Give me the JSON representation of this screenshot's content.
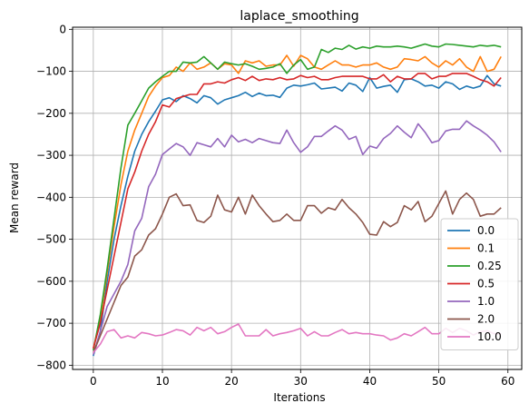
{
  "chart_data": {
    "type": "line",
    "title": "laplace_smoothing",
    "xlabel": "Iterations",
    "ylabel": "Mean reward",
    "xlim": [
      -3,
      62
    ],
    "ylim": [
      -810,
      5
    ],
    "xticks": [
      0,
      10,
      20,
      30,
      40,
      50,
      60
    ],
    "yticks": [
      0,
      -100,
      -200,
      -300,
      -400,
      -500,
      -600,
      -700,
      -800
    ],
    "grid": true,
    "legend_position": "lower-right",
    "x": [
      0,
      1,
      2,
      3,
      4,
      5,
      6,
      7,
      8,
      9,
      10,
      11,
      12,
      13,
      14,
      15,
      16,
      17,
      18,
      19,
      20,
      21,
      22,
      23,
      24,
      25,
      26,
      27,
      28,
      29,
      30,
      31,
      32,
      33,
      34,
      35,
      36,
      37,
      38,
      39,
      40,
      41,
      42,
      43,
      44,
      45,
      46,
      47,
      48,
      49,
      50,
      51,
      52,
      53,
      54,
      55,
      56,
      57,
      58,
      59
    ],
    "series": [
      {
        "name": "0.0",
        "color": "#1f77b4",
        "values": [
          -778,
          -720,
          -600,
          -500,
          -420,
          -350,
          -290,
          -250,
          -220,
          -195,
          -168,
          -163,
          -172,
          -158,
          -165,
          -175,
          -158,
          -163,
          -178,
          -168,
          -163,
          -158,
          -150,
          -160,
          -152,
          -158,
          -157,
          -162,
          -140,
          -133,
          -135,
          -132,
          -128,
          -142,
          -140,
          -138,
          -147,
          -128,
          -133,
          -148,
          -115,
          -140,
          -136,
          -133,
          -150,
          -120,
          -118,
          -125,
          -135,
          -133,
          -140,
          -125,
          -130,
          -143,
          -135,
          -140,
          -135,
          -110,
          -130,
          -135
        ]
      },
      {
        "name": "0.1",
        "color": "#ff7f0e",
        "values": [
          -760,
          -690,
          -580,
          -470,
          -370,
          -290,
          -240,
          -200,
          -160,
          -135,
          -115,
          -110,
          -90,
          -100,
          -80,
          -95,
          -90,
          -80,
          -95,
          -82,
          -85,
          -105,
          -75,
          -80,
          -75,
          -88,
          -85,
          -85,
          -62,
          -88,
          -62,
          -70,
          -90,
          -95,
          -85,
          -75,
          -85,
          -85,
          -90,
          -85,
          -85,
          -80,
          -90,
          -95,
          -90,
          -70,
          -72,
          -75,
          -65,
          -80,
          -90,
          -75,
          -85,
          -70,
          -90,
          -100,
          -65,
          -100,
          -95,
          -65
        ]
      },
      {
        "name": "0.25",
        "color": "#2ca02c",
        "values": [
          -765,
          -680,
          -570,
          -450,
          -330,
          -228,
          -200,
          -170,
          -140,
          -125,
          -112,
          -100,
          -100,
          -78,
          -80,
          -78,
          -65,
          -80,
          -95,
          -78,
          -82,
          -85,
          -82,
          -88,
          -95,
          -93,
          -90,
          -82,
          -105,
          -85,
          -72,
          -95,
          -90,
          -48,
          -55,
          -45,
          -48,
          -38,
          -47,
          -42,
          -45,
          -40,
          -42,
          -42,
          -40,
          -42,
          -45,
          -40,
          -35,
          -40,
          -42,
          -35,
          -36,
          -38,
          -40,
          -42,
          -38,
          -40,
          -38,
          -42
        ]
      },
      {
        "name": "0.5",
        "color": "#d62728",
        "values": [
          -760,
          -700,
          -620,
          -540,
          -460,
          -380,
          -340,
          -290,
          -250,
          -220,
          -180,
          -185,
          -165,
          -160,
          -155,
          -155,
          -130,
          -130,
          -125,
          -128,
          -120,
          -115,
          -122,
          -112,
          -122,
          -118,
          -120,
          -115,
          -120,
          -118,
          -110,
          -115,
          -112,
          -120,
          -120,
          -115,
          -112,
          -112,
          -112,
          -112,
          -118,
          -118,
          -108,
          -125,
          -112,
          -118,
          -118,
          -105,
          -105,
          -118,
          -112,
          -112,
          -105,
          -105,
          -105,
          -112,
          -120,
          -125,
          -135,
          -115
        ]
      },
      {
        "name": "1.0",
        "color": "#9467bd",
        "values": [
          -775,
          -720,
          -660,
          -630,
          -600,
          -560,
          -480,
          -450,
          -375,
          -345,
          -298,
          -285,
          -272,
          -280,
          -300,
          -270,
          -275,
          -280,
          -260,
          -280,
          -252,
          -268,
          -262,
          -270,
          -260,
          -265,
          -270,
          -272,
          -240,
          -270,
          -293,
          -280,
          -255,
          -255,
          -242,
          -230,
          -240,
          -262,
          -255,
          -298,
          -278,
          -283,
          -260,
          -248,
          -230,
          -245,
          -258,
          -225,
          -245,
          -270,
          -265,
          -242,
          -238,
          -238,
          -218,
          -230,
          -240,
          -252,
          -268,
          -292
        ]
      },
      {
        "name": "2.0",
        "color": "#8c564b",
        "values": [
          -770,
          -730,
          -690,
          -650,
          -610,
          -590,
          -540,
          -525,
          -490,
          -475,
          -440,
          -400,
          -392,
          -420,
          -418,
          -455,
          -460,
          -445,
          -395,
          -430,
          -435,
          -400,
          -440,
          -395,
          -420,
          -440,
          -458,
          -455,
          -440,
          -455,
          -455,
          -420,
          -420,
          -438,
          -425,
          -430,
          -405,
          -425,
          -440,
          -460,
          -488,
          -490,
          -458,
          -470,
          -460,
          -420,
          -430,
          -410,
          -458,
          -445,
          -415,
          -385,
          -440,
          -405,
          -390,
          -405,
          -445,
          -440,
          -440,
          -425
        ]
      },
      {
        "name": "10.0",
        "color": "#e377c2",
        "values": [
          -770,
          -750,
          -720,
          -715,
          -735,
          -730,
          -735,
          -722,
          -725,
          -730,
          -728,
          -722,
          -715,
          -718,
          -728,
          -710,
          -718,
          -710,
          -725,
          -720,
          -710,
          -702,
          -730,
          -730,
          -730,
          -715,
          -730,
          -725,
          -722,
          -718,
          -712,
          -730,
          -720,
          -730,
          -730,
          -722,
          -715,
          -725,
          -722,
          -725,
          -725,
          -728,
          -730,
          -740,
          -735,
          -725,
          -730,
          -720,
          -710,
          -725,
          -725,
          -712,
          -722,
          -712,
          -718,
          -728,
          -720,
          -718,
          -725,
          -725
        ]
      }
    ],
    "x_tick_labels": [
      "0",
      "10",
      "20",
      "30",
      "40",
      "50",
      "60"
    ],
    "y_tick_labels": [
      "0",
      "−100",
      "−200",
      "−300",
      "−400",
      "−500",
      "−600",
      "−700",
      "−800"
    ]
  }
}
